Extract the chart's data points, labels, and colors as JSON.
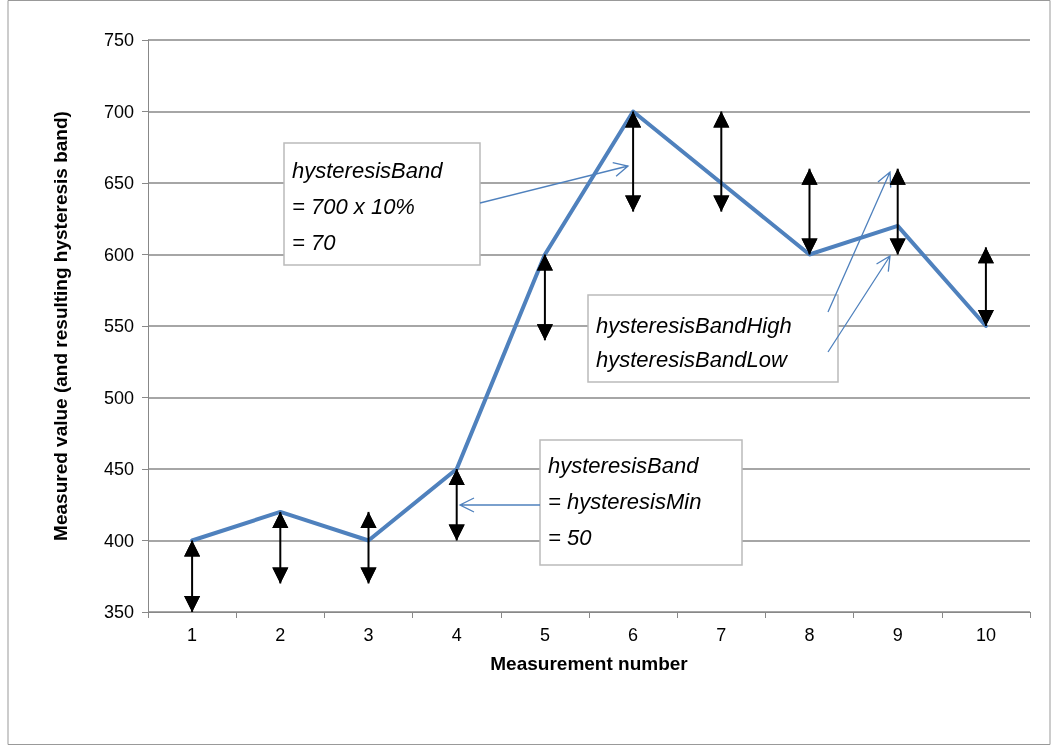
{
  "chart_data": {
    "type": "line",
    "xlabel": "Measurement number",
    "ylabel": "Measured value (and resulting hysteresis band)",
    "categories": [
      "1",
      "2",
      "3",
      "4",
      "5",
      "6",
      "7",
      "8",
      "9",
      "10"
    ],
    "series": [
      {
        "color": "#4f81bd",
        "values": [
          400,
          420,
          400,
          450,
          600,
          700,
          650,
          600,
          620,
          550
        ],
        "errors": [
          [
            350,
            400
          ],
          [
            370,
            420
          ],
          [
            370,
            420
          ],
          [
            400,
            450
          ],
          [
            540,
            600
          ],
          [
            630,
            700
          ],
          [
            630,
            700
          ],
          [
            600,
            660
          ],
          [
            600,
            660
          ],
          [
            550,
            605
          ]
        ]
      }
    ],
    "ylim": [
      350,
      750
    ],
    "yticks": [
      350,
      400,
      450,
      500,
      550,
      600,
      650,
      700,
      750
    ],
    "grid": "y",
    "annotations": [
      "hysteresisBand\n= 700 x 10%\n= 70",
      "hysteresisBand\n= hysteresisMin\n= 50",
      "hysteresisBandHigh",
      "hysteresisBandLow"
    ]
  }
}
